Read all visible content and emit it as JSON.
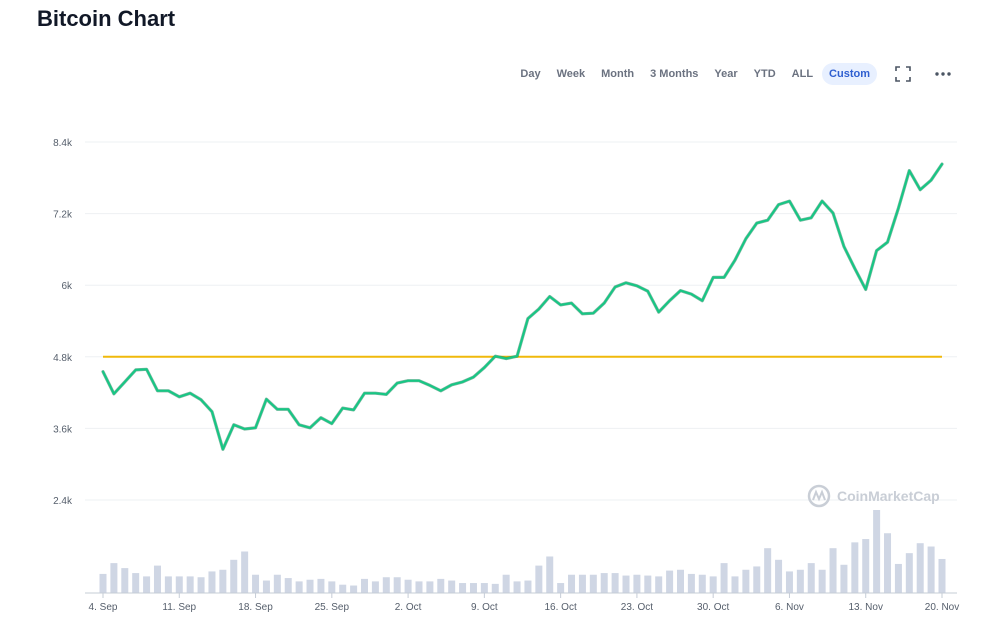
{
  "page": {
    "title": "Bitcoin Chart"
  },
  "toolbar": {
    "ranges": [
      "Day",
      "Week",
      "Month",
      "3 Months",
      "Year",
      "YTD",
      "ALL",
      "Custom"
    ],
    "active_range": "Custom",
    "fullscreen_icon": "fullscreen-icon",
    "more_icon": "more-options-icon"
  },
  "watermark": {
    "text": "CoinMarketCap"
  },
  "colors": {
    "price_line": "#16c784",
    "reference_line": "#f0b90b",
    "volume_bars": "#cfd6e4",
    "active_range_bg": "#e8f0ff",
    "active_range_text": "#2f5fd0"
  },
  "chart_data": {
    "type": "line",
    "title": "",
    "xlabel": "",
    "ylabel": "",
    "ylim": [
      1200,
      8600
    ],
    "y_ticks": [
      2400,
      3600,
      4800,
      6000,
      7200,
      8400
    ],
    "y_tick_labels": [
      "2.4k",
      "3.6k",
      "4.8k",
      "6k",
      "7.2k",
      "8.4k"
    ],
    "x_tick_labels": [
      "4. Sep",
      "11. Sep",
      "18. Sep",
      "25. Sep",
      "2. Oct",
      "9. Oct",
      "16. Oct",
      "23. Oct",
      "30. Oct",
      "6. Nov",
      "13. Nov",
      "20. Nov"
    ],
    "x_tick_days": [
      0,
      7,
      14,
      21,
      28,
      35,
      42,
      49,
      56,
      63,
      70,
      77
    ],
    "grid": true,
    "legend": "none",
    "reference_line": {
      "value": 4800
    },
    "series": [
      {
        "values": [
          4550,
          4180,
          4380,
          4580,
          4590,
          4230,
          4230,
          4130,
          4190,
          4080,
          3880,
          3250,
          3660,
          3590,
          3610,
          4090,
          3920,
          3920,
          3660,
          3610,
          3780,
          3680,
          3940,
          3910,
          4190,
          4190,
          4170,
          4360,
          4400,
          4400,
          4320,
          4230,
          4330,
          4380,
          4460,
          4620,
          4810,
          4770,
          4810,
          5440,
          5600,
          5810,
          5670,
          5700,
          5520,
          5530,
          5700,
          5970,
          6040,
          5990,
          5900,
          5550,
          5740,
          5910,
          5850,
          5740,
          6130,
          6130,
          6420,
          6780,
          7040,
          7090,
          7350,
          7410,
          7090,
          7130,
          7410,
          7210,
          6650,
          6280,
          5930,
          6580,
          6720,
          7290,
          7920,
          7600,
          7760,
          8030
        ]
      }
    ],
    "volume": [
      0.23,
      0.36,
      0.3,
      0.24,
      0.2,
      0.33,
      0.2,
      0.2,
      0.2,
      0.19,
      0.26,
      0.28,
      0.4,
      0.5,
      0.22,
      0.15,
      0.22,
      0.18,
      0.14,
      0.16,
      0.17,
      0.14,
      0.1,
      0.09,
      0.17,
      0.14,
      0.19,
      0.19,
      0.16,
      0.14,
      0.14,
      0.17,
      0.15,
      0.12,
      0.12,
      0.12,
      0.11,
      0.22,
      0.14,
      0.15,
      0.33,
      0.44,
      0.12,
      0.22,
      0.22,
      0.22,
      0.24,
      0.24,
      0.21,
      0.22,
      0.21,
      0.2,
      0.27,
      0.28,
      0.23,
      0.22,
      0.2,
      0.36,
      0.2,
      0.28,
      0.32,
      0.54,
      0.4,
      0.26,
      0.28,
      0.36,
      0.28,
      0.54,
      0.34,
      0.61,
      0.65,
      1.0,
      0.72,
      0.35,
      0.48,
      0.6,
      0.56,
      0.41
    ]
  }
}
